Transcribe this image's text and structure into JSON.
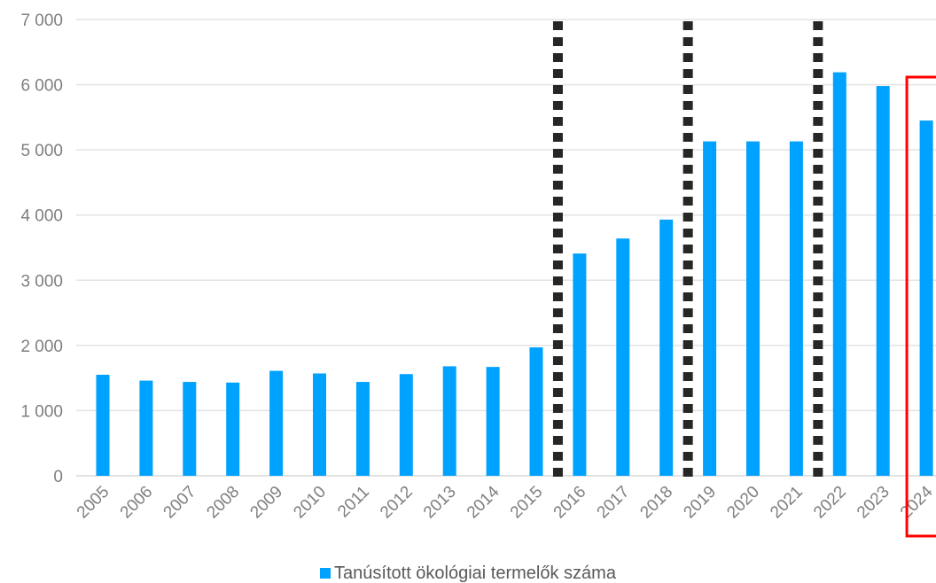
{
  "chart_data": {
    "type": "bar",
    "categories": [
      "2005",
      "2006",
      "2007",
      "2008",
      "2009",
      "2010",
      "2011",
      "2012",
      "2013",
      "2014",
      "2015",
      "2016",
      "2017",
      "2018",
      "2019",
      "2020",
      "2021",
      "2022",
      "2023",
      "2024"
    ],
    "series": [
      {
        "name": "Tanúsított ökológiai termelők száma",
        "color": "#00a2ff",
        "values": [
          1550,
          1460,
          1440,
          1430,
          1610,
          1570,
          1440,
          1560,
          1680,
          1670,
          1970,
          3410,
          3640,
          3930,
          5130,
          5130,
          5130,
          6190,
          5980,
          5450
        ]
      }
    ],
    "y_ticks": [
      "0",
      "1 000",
      "2 000",
      "3 000",
      "4 000",
      "5 000",
      "6 000",
      "7 000"
    ],
    "ylim": [
      0,
      7000
    ],
    "grid": true,
    "legend_position": "bottom",
    "annotations": {
      "dotted_separators_after": [
        "2015",
        "2018",
        "2021"
      ],
      "highlight_box_category": "2024",
      "highlight_color": "#ff0000",
      "separator_color": "#262626"
    }
  }
}
